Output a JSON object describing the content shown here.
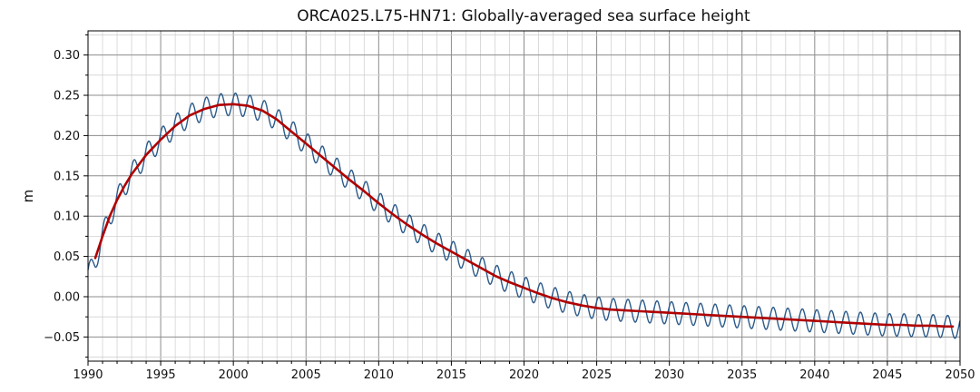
{
  "chart_data": {
    "type": "line",
    "title": "ORCA025.L75-HN71: Globally-averaged sea surface height",
    "xlabel": "",
    "ylabel": "m",
    "xlim": [
      1990,
      2050
    ],
    "ylim": [
      -0.08,
      0.33
    ],
    "x_ticks": [
      "1990",
      "1995",
      "2000",
      "2005",
      "2010",
      "2015",
      "2020",
      "2025",
      "2030",
      "2035",
      "2040",
      "2045",
      "2050"
    ],
    "y_ticks": [
      "−0.05",
      "0.00",
      "0.05",
      "0.10",
      "0.15",
      "0.20",
      "0.25",
      "0.30"
    ],
    "grid": true,
    "series": [
      {
        "kind": "monthly",
        "color": "#2b5a8a",
        "seasonal_amplitude": 0.014,
        "x": [
          1990.0,
          1990.5,
          1991.0,
          1991.5,
          1992.0,
          1992.5,
          1993.0,
          1994.0,
          1995.0,
          1996.0,
          1997.0,
          1998.0,
          1999.0,
          2000.0,
          2001.0,
          2002.0,
          2003.0,
          2004.0,
          2005.0,
          2006.0,
          2007.0,
          2008.0,
          2009.0,
          2010.0,
          2011.0,
          2012.0,
          2013.0,
          2014.0,
          2015.0,
          2016.0,
          2017.0,
          2018.0,
          2019.0,
          2020.0,
          2021.0,
          2022.0,
          2023.0,
          2024.0,
          2025.0,
          2026.0,
          2027.0,
          2028.0,
          2029.0,
          2030.0,
          2031.0,
          2032.0,
          2033.0,
          2034.0,
          2035.0,
          2036.0,
          2037.0,
          2038.0,
          2039.0,
          2040.0,
          2041.0,
          2042.0,
          2043.0,
          2044.0,
          2045.0,
          2046.0,
          2047.0,
          2048.0,
          2049.0,
          2050.0
        ],
        "y": [
          0.025,
          0.045,
          0.075,
          0.1,
          0.12,
          0.137,
          0.152,
          0.176,
          0.195,
          0.212,
          0.225,
          0.233,
          0.238,
          0.239,
          0.237,
          0.231,
          0.22,
          0.205,
          0.19,
          0.175,
          0.16,
          0.145,
          0.131,
          0.116,
          0.102,
          0.089,
          0.077,
          0.066,
          0.056,
          0.046,
          0.036,
          0.026,
          0.018,
          0.011,
          0.004,
          -0.002,
          -0.007,
          -0.011,
          -0.014,
          -0.016,
          -0.017,
          -0.018,
          -0.019,
          -0.02,
          -0.021,
          -0.022,
          -0.023,
          -0.024,
          -0.025,
          -0.026,
          -0.027,
          -0.028,
          -0.029,
          -0.03,
          -0.031,
          -0.032,
          -0.033,
          -0.034,
          -0.035,
          -0.035,
          -0.036,
          -0.036,
          -0.037,
          -0.038
        ]
      },
      {
        "kind": "smoothed",
        "color": "#b00000",
        "x": [
          1990.5,
          1991.0,
          1991.5,
          1992.0,
          1992.5,
          1993.0,
          1994.0,
          1995.0,
          1996.0,
          1997.0,
          1998.0,
          1999.0,
          2000.0,
          2001.0,
          2002.0,
          2003.0,
          2004.0,
          2005.0,
          2006.0,
          2007.0,
          2008.0,
          2009.0,
          2010.0,
          2011.0,
          2012.0,
          2013.0,
          2014.0,
          2015.0,
          2016.0,
          2017.0,
          2018.0,
          2019.0,
          2020.0,
          2021.0,
          2022.0,
          2023.0,
          2024.0,
          2025.0,
          2026.0,
          2027.0,
          2028.0,
          2029.0,
          2030.0,
          2031.0,
          2032.0,
          2033.0,
          2034.0,
          2035.0,
          2036.0,
          2037.0,
          2038.0,
          2039.0,
          2040.0,
          2041.0,
          2042.0,
          2043.0,
          2044.0,
          2045.0,
          2046.0,
          2047.0,
          2048.0,
          2049.0,
          2049.5
        ],
        "y": [
          0.048,
          0.075,
          0.1,
          0.12,
          0.137,
          0.152,
          0.176,
          0.195,
          0.212,
          0.225,
          0.233,
          0.238,
          0.239,
          0.237,
          0.231,
          0.22,
          0.205,
          0.19,
          0.175,
          0.16,
          0.145,
          0.131,
          0.116,
          0.102,
          0.089,
          0.077,
          0.066,
          0.056,
          0.046,
          0.036,
          0.026,
          0.018,
          0.011,
          0.004,
          -0.002,
          -0.007,
          -0.011,
          -0.014,
          -0.016,
          -0.017,
          -0.018,
          -0.019,
          -0.02,
          -0.021,
          -0.022,
          -0.023,
          -0.024,
          -0.025,
          -0.026,
          -0.027,
          -0.028,
          -0.029,
          -0.03,
          -0.031,
          -0.032,
          -0.033,
          -0.034,
          -0.035,
          -0.035,
          -0.036,
          -0.036,
          -0.037,
          -0.037
        ]
      }
    ]
  }
}
